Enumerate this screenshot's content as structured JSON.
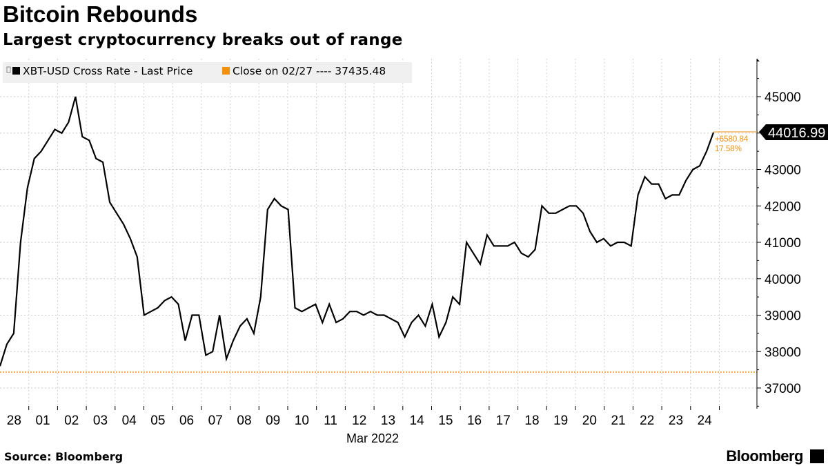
{
  "title": "Bitcoin Rebounds",
  "subtitle": "Largest cryptocurrency breaks out of range",
  "source": "Source: Bloomberg",
  "brand": "Bloomberg",
  "chart_data": {
    "type": "line",
    "title": "Bitcoin Rebounds",
    "legend": [
      {
        "label": "XBT-USD Cross Rate - Last Price",
        "color": "#000000"
      },
      {
        "label": "Close on 02/27 ---- 37435.48",
        "color": "#f5900a"
      }
    ],
    "legend_position": "top-left",
    "reference_line": {
      "value": 37435.48,
      "color": "#f5900a"
    },
    "last_value": "44016.99",
    "change_label": "+6580.84",
    "change_pct_label": "17.58%",
    "x_start": "2022-02-28",
    "x_days_span": 24.8,
    "xtick_labels": [
      "28",
      "01",
      "02",
      "03",
      "04",
      "05",
      "06",
      "07",
      "08",
      "09",
      "10",
      "11",
      "12",
      "13",
      "14",
      "15",
      "16",
      "17",
      "18",
      "19",
      "20",
      "21",
      "22",
      "23",
      "24"
    ],
    "xlabel": "Mar 2022",
    "ylim": [
      36600,
      45900
    ],
    "yticks": [
      37000,
      38000,
      39000,
      40000,
      41000,
      42000,
      43000,
      44000,
      45000
    ],
    "ytick_labels": [
      "37000",
      "38000",
      "39000",
      "40000",
      "41000",
      "42000",
      "43000",
      "",
      "45000"
    ],
    "grid": true,
    "values": [
      37600,
      38200,
      38500,
      41000,
      42500,
      43300,
      43500,
      43800,
      44100,
      44000,
      44300,
      45000,
      43900,
      43800,
      43300,
      43200,
      42100,
      41800,
      41500,
      41100,
      40600,
      39000,
      39100,
      39200,
      39400,
      39500,
      39300,
      38300,
      39000,
      39000,
      37900,
      38000,
      39000,
      37800,
      38300,
      38700,
      38900,
      38500,
      39500,
      41900,
      42200,
      42000,
      41900,
      39200,
      39100,
      39200,
      39300,
      38800,
      39300,
      38800,
      38900,
      39100,
      39100,
      39000,
      39100,
      39000,
      39000,
      38900,
      38800,
      38400,
      38800,
      39000,
      38700,
      39300,
      38400,
      38800,
      39500,
      39300,
      41000,
      40700,
      40400,
      41200,
      40900,
      40900,
      40900,
      41000,
      40700,
      40600,
      40800,
      42000,
      41800,
      41800,
      41900,
      42000,
      42000,
      41800,
      41300,
      41000,
      41100,
      40900,
      41000,
      41000,
      40900,
      42300,
      42800,
      42600,
      42600,
      42200,
      42300,
      42300,
      42700,
      43000,
      43100,
      43500,
      44016.99
    ]
  }
}
